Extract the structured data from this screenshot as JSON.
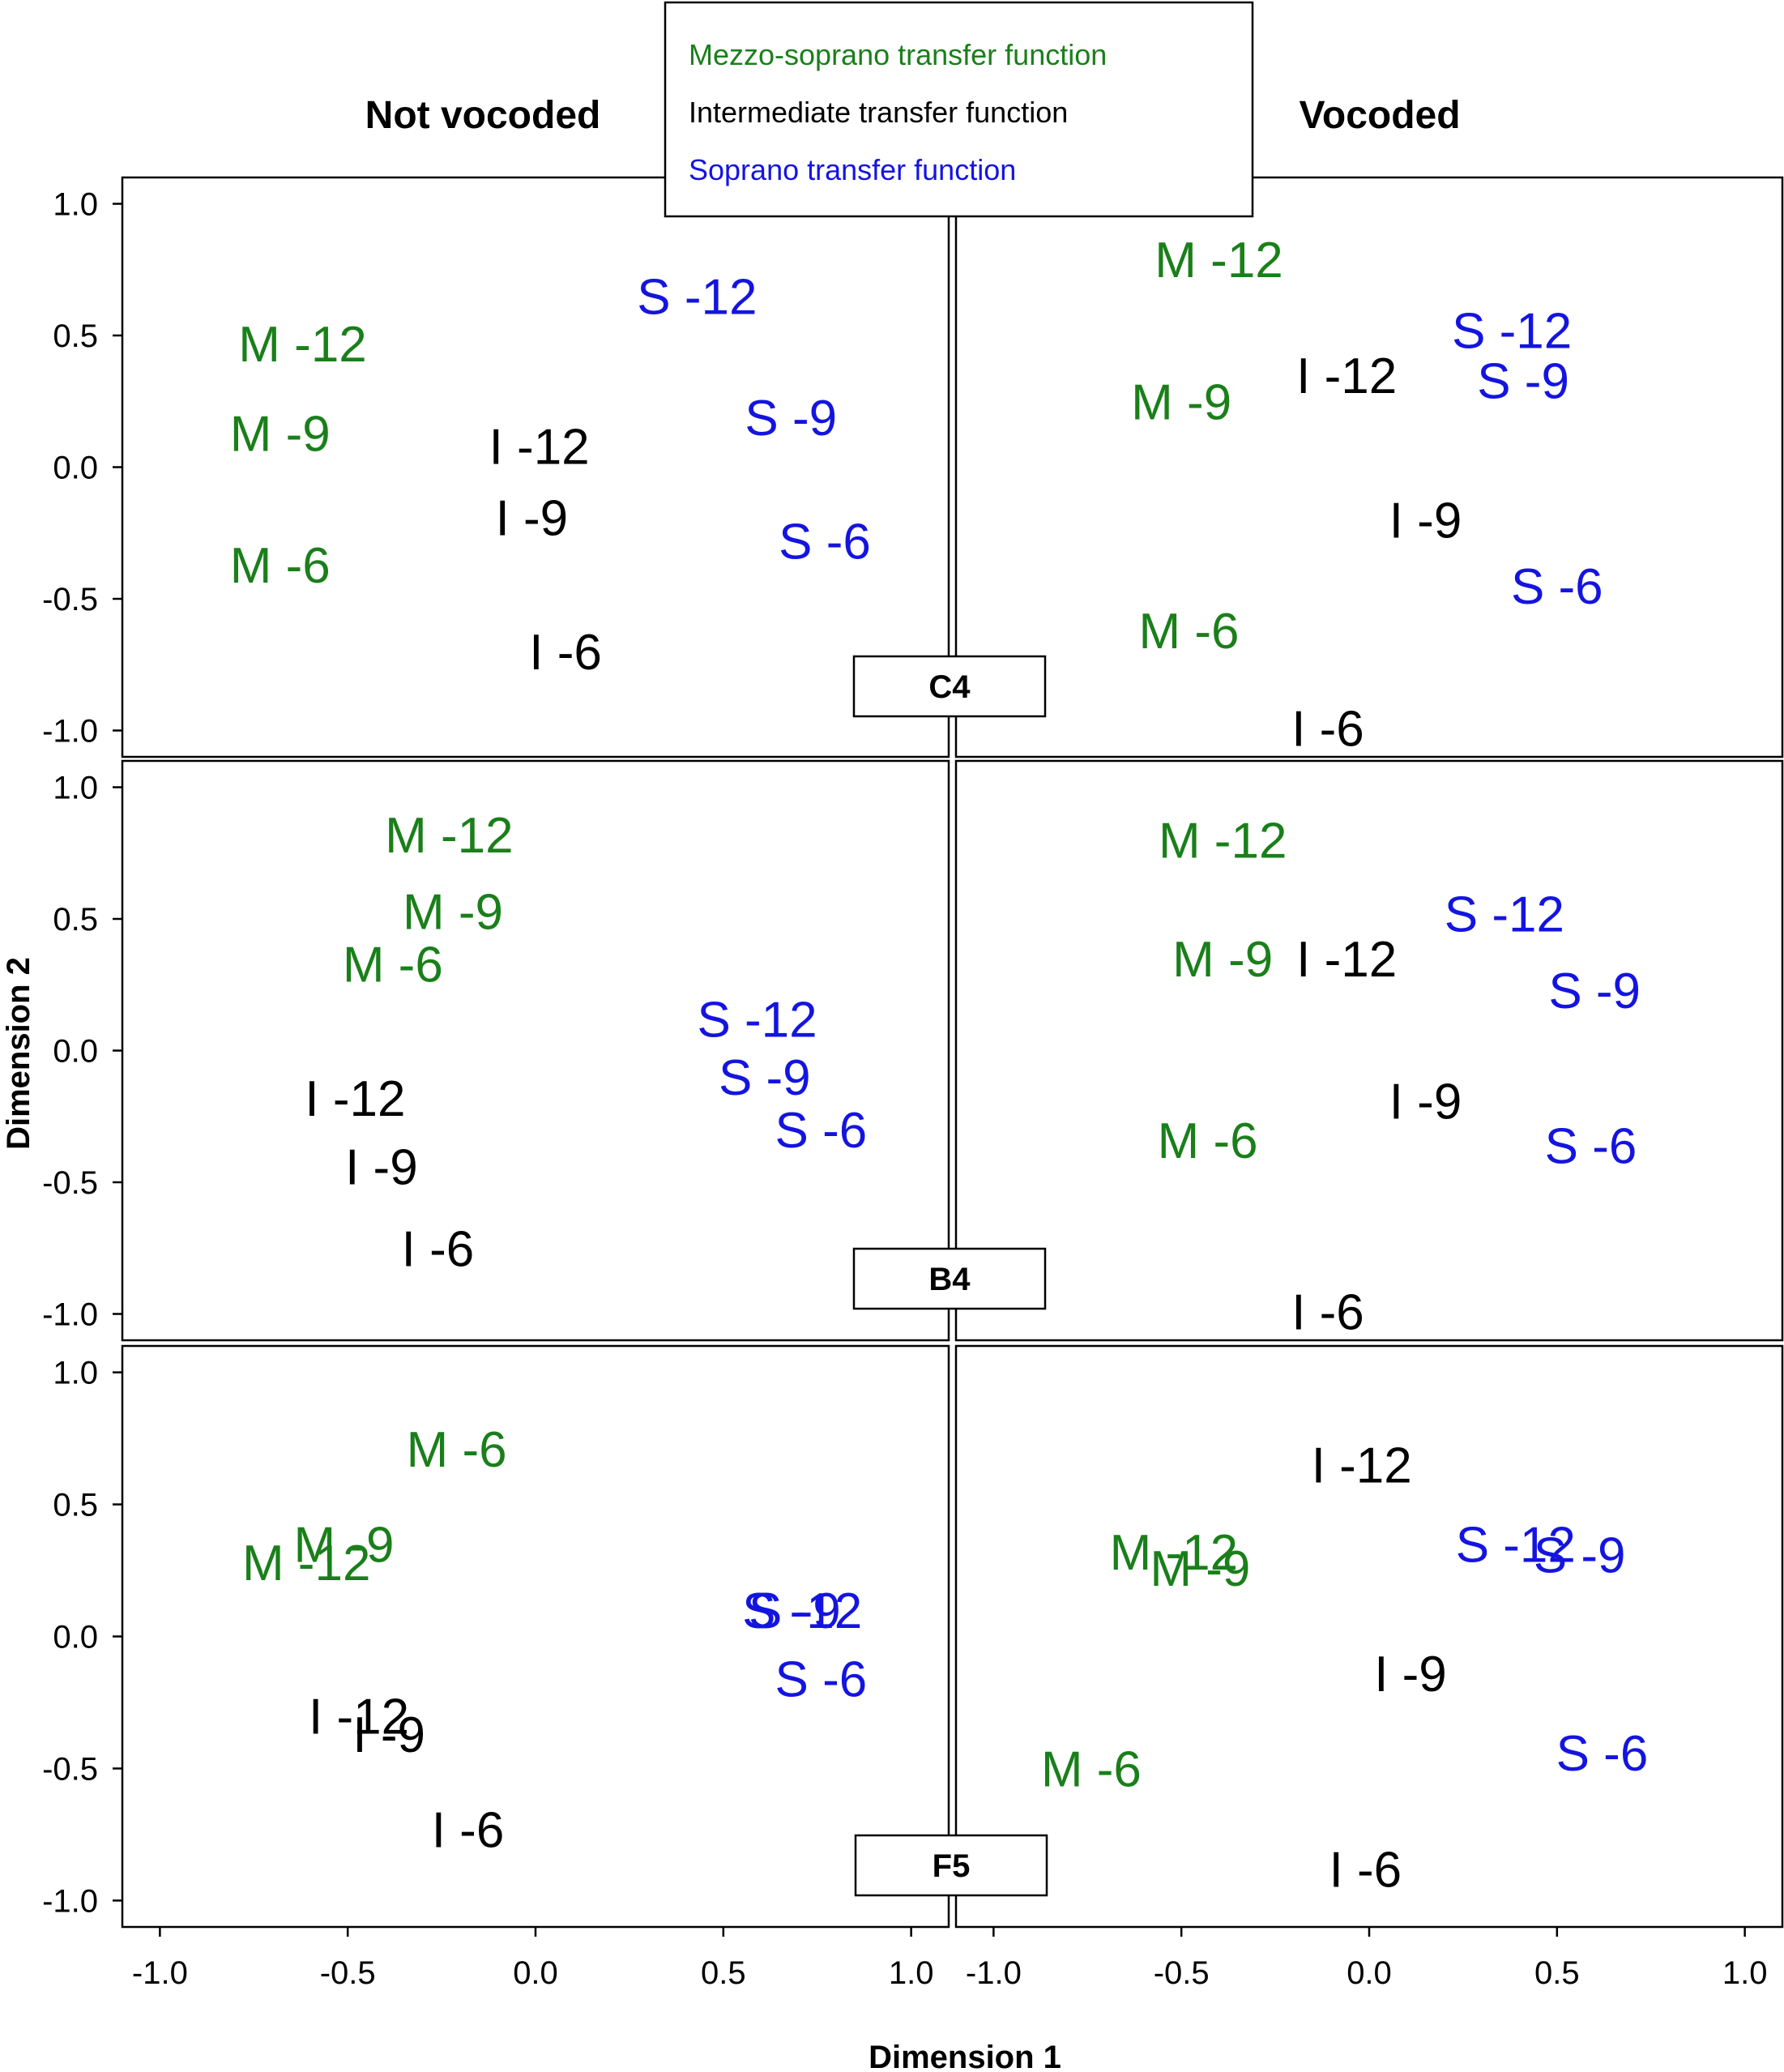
{
  "colors": {
    "M": "#1a7f1a",
    "I": "#000000",
    "S": "#1414e0"
  },
  "legend": [
    {
      "label": "Mezzo-soprano transfer function",
      "color": "#1a7f1a"
    },
    {
      "label": "Intermediate transfer function",
      "color": "#000000"
    },
    {
      "label": "Soprano transfer function",
      "color": "#1414e0"
    }
  ],
  "columns": [
    "Not vocoded",
    "Vocoded"
  ],
  "xlabel": "Dimension 1",
  "ylabel": "Dimension 2",
  "x_ticks": [
    "-1.0",
    "-0.5",
    "0.0",
    "0.5",
    "1.0"
  ],
  "y_ticks": [
    "1.0",
    "0.5",
    "0.0",
    "-0.5",
    "-1.0"
  ],
  "chart_data": {
    "type": "scatter",
    "xlim": [
      -1.1,
      1.1
    ],
    "ylim": [
      -1.1,
      1.1
    ],
    "grid": false,
    "legend_position": "top-center",
    "rows": [
      {
        "name": "C4",
        "panels": [
          {
            "column": "Not vocoded",
            "points": [
              {
                "label": "M -12",
                "group": "M",
                "x": -0.62,
                "y": 0.47
              },
              {
                "label": "M -9",
                "group": "M",
                "x": -0.68,
                "y": 0.13
              },
              {
                "label": "M -6",
                "group": "M",
                "x": -0.68,
                "y": -0.37
              },
              {
                "label": "I -12",
                "group": "I",
                "x": 0.01,
                "y": 0.08
              },
              {
                "label": "I -9",
                "group": "I",
                "x": -0.01,
                "y": -0.19
              },
              {
                "label": "I -6",
                "group": "I",
                "x": 0.08,
                "y": -0.7
              },
              {
                "label": "S -12",
                "group": "S",
                "x": 0.43,
                "y": 0.65
              },
              {
                "label": "S -9",
                "group": "S",
                "x": 0.68,
                "y": 0.19
              },
              {
                "label": "S -6",
                "group": "S",
                "x": 0.77,
                "y": -0.28
              }
            ]
          },
          {
            "column": "Vocoded",
            "points": [
              {
                "label": "M -12",
                "group": "M",
                "x": -0.4,
                "y": 0.79
              },
              {
                "label": "M -9",
                "group": "M",
                "x": -0.5,
                "y": 0.25
              },
              {
                "label": "M -6",
                "group": "M",
                "x": -0.48,
                "y": -0.62
              },
              {
                "label": "I -12",
                "group": "I",
                "x": -0.06,
                "y": 0.35
              },
              {
                "label": "I -9",
                "group": "I",
                "x": 0.15,
                "y": -0.2
              },
              {
                "label": "I -6",
                "group": "I",
                "x": -0.11,
                "y": -0.99
              },
              {
                "label": "S -12",
                "group": "S",
                "x": 0.38,
                "y": 0.52
              },
              {
                "label": "S -9",
                "group": "S",
                "x": 0.41,
                "y": 0.33
              },
              {
                "label": "S -6",
                "group": "S",
                "x": 0.5,
                "y": -0.45
              }
            ]
          }
        ]
      },
      {
        "name": "B4",
        "panels": [
          {
            "column": "Not vocoded",
            "points": [
              {
                "label": "M -12",
                "group": "M",
                "x": -0.23,
                "y": 0.82
              },
              {
                "label": "M -9",
                "group": "M",
                "x": -0.22,
                "y": 0.53
              },
              {
                "label": "M -6",
                "group": "M",
                "x": -0.38,
                "y": 0.33
              },
              {
                "label": "I -12",
                "group": "I",
                "x": -0.48,
                "y": -0.18
              },
              {
                "label": "I -9",
                "group": "I",
                "x": -0.41,
                "y": -0.44
              },
              {
                "label": "I -6",
                "group": "I",
                "x": -0.26,
                "y": -0.75
              },
              {
                "label": "S -12",
                "group": "S",
                "x": 0.59,
                "y": 0.12
              },
              {
                "label": "S -9",
                "group": "S",
                "x": 0.61,
                "y": -0.1
              },
              {
                "label": "S -6",
                "group": "S",
                "x": 0.76,
                "y": -0.3
              }
            ]
          },
          {
            "column": "Vocoded",
            "points": [
              {
                "label": "M -12",
                "group": "M",
                "x": -0.39,
                "y": 0.8
              },
              {
                "label": "M -9",
                "group": "M",
                "x": -0.39,
                "y": 0.35
              },
              {
                "label": "M -6",
                "group": "M",
                "x": -0.43,
                "y": -0.34
              },
              {
                "label": "I -12",
                "group": "I",
                "x": -0.06,
                "y": 0.35
              },
              {
                "label": "I -9",
                "group": "I",
                "x": 0.15,
                "y": -0.19
              },
              {
                "label": "I -6",
                "group": "I",
                "x": -0.11,
                "y": -0.99
              },
              {
                "label": "S -12",
                "group": "S",
                "x": 0.36,
                "y": 0.52
              },
              {
                "label": "S -9",
                "group": "S",
                "x": 0.6,
                "y": 0.23
              },
              {
                "label": "S -6",
                "group": "S",
                "x": 0.59,
                "y": -0.36
              }
            ]
          }
        ]
      },
      {
        "name": "F5",
        "panels": [
          {
            "column": "Not vocoded",
            "points": [
              {
                "label": "M -6",
                "group": "M",
                "x": -0.21,
                "y": 0.71
              },
              {
                "label": "M -9",
                "group": "M",
                "x": -0.51,
                "y": 0.35
              },
              {
                "label": "M -12",
                "group": "M",
                "x": -0.61,
                "y": 0.28
              },
              {
                "label": "I -12",
                "group": "I",
                "x": -0.47,
                "y": -0.3
              },
              {
                "label": "I -9",
                "group": "I",
                "x": -0.39,
                "y": -0.37
              },
              {
                "label": "I -6",
                "group": "I",
                "x": -0.18,
                "y": -0.73
              },
              {
                "label": "S -12",
                "group": "S",
                "x": 0.71,
                "y": 0.1
              },
              {
                "label": "S -9",
                "group": "S",
                "x": 0.69,
                "y": 0.1
              },
              {
                "label": "S -6",
                "group": "S",
                "x": 0.76,
                "y": -0.16
              }
            ]
          },
          {
            "column": "Vocoded",
            "points": [
              {
                "label": "M -12",
                "group": "M",
                "x": -0.52,
                "y": 0.32
              },
              {
                "label": "M -9",
                "group": "M",
                "x": -0.45,
                "y": 0.26
              },
              {
                "label": "M -6",
                "group": "M",
                "x": -0.74,
                "y": -0.5
              },
              {
                "label": "I -12",
                "group": "I",
                "x": -0.02,
                "y": 0.65
              },
              {
                "label": "I -9",
                "group": "I",
                "x": 0.11,
                "y": -0.14
              },
              {
                "label": "I -6",
                "group": "I",
                "x": -0.01,
                "y": -0.88
              },
              {
                "label": "S -12",
                "group": "S",
                "x": 0.39,
                "y": 0.35
              },
              {
                "label": "S -9",
                "group": "S",
                "x": 0.56,
                "y": 0.31
              },
              {
                "label": "S -6",
                "group": "S",
                "x": 0.62,
                "y": -0.44
              }
            ]
          }
        ]
      }
    ]
  }
}
